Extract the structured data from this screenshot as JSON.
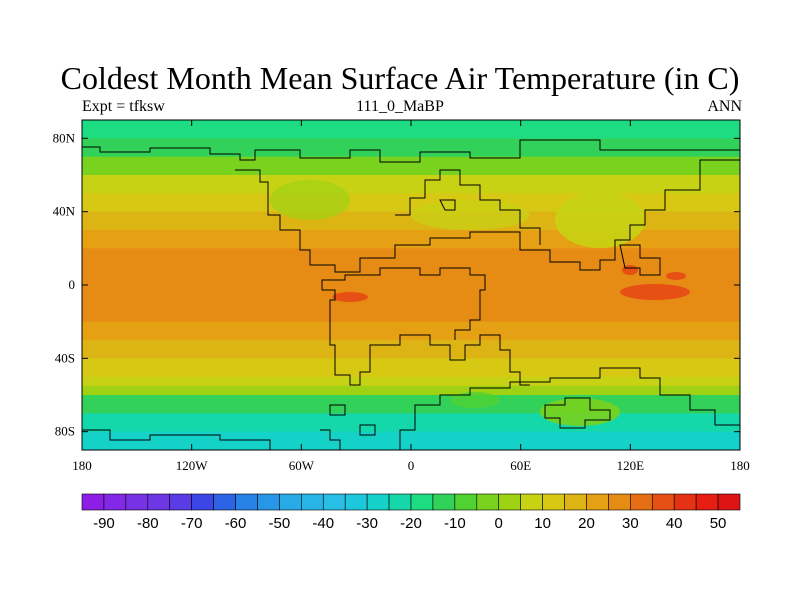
{
  "title": "Coldest Month Mean Surface Air Temperature (in C)",
  "subtitle_left": "Expt = tfksw",
  "subtitle_center": "111_0_MaBP",
  "subtitle_right": "ANN",
  "map": {
    "projection": "cylindrical-equidistant",
    "lon_range": [
      -180,
      180
    ],
    "lat_range": [
      -90,
      90
    ],
    "x_ticks": [
      {
        "value": -180,
        "label": "180"
      },
      {
        "value": -120,
        "label": "120W"
      },
      {
        "value": -60,
        "label": "60W"
      },
      {
        "value": 0,
        "label": "0"
      },
      {
        "value": 60,
        "label": "60E"
      },
      {
        "value": 120,
        "label": "120E"
      },
      {
        "value": 180,
        "label": "180"
      }
    ],
    "y_ticks": [
      {
        "value": 80,
        "label": "80N"
      },
      {
        "value": 40,
        "label": "40N"
      },
      {
        "value": 0,
        "label": "0"
      },
      {
        "value": -40,
        "label": "40S"
      },
      {
        "value": -80,
        "label": "80S"
      }
    ],
    "temperature_bands_by_latitude": [
      {
        "lat_min": 80,
        "lat_max": 90,
        "value": -20
      },
      {
        "lat_min": 70,
        "lat_max": 80,
        "value": -12
      },
      {
        "lat_min": 60,
        "lat_max": 70,
        "value": -3
      },
      {
        "lat_min": 50,
        "lat_max": 60,
        "value": 5
      },
      {
        "lat_min": 40,
        "lat_max": 50,
        "value": 12
      },
      {
        "lat_min": 30,
        "lat_max": 40,
        "value": 18
      },
      {
        "lat_min": 20,
        "lat_max": 30,
        "value": 23
      },
      {
        "lat_min": 10,
        "lat_max": 20,
        "value": 27
      },
      {
        "lat_min": -10,
        "lat_max": 10,
        "value": 28
      },
      {
        "lat_min": -20,
        "lat_max": -10,
        "value": 26
      },
      {
        "lat_min": -30,
        "lat_max": -20,
        "value": 22
      },
      {
        "lat_min": -40,
        "lat_max": -30,
        "value": 17
      },
      {
        "lat_min": -50,
        "lat_max": -40,
        "value": 12
      },
      {
        "lat_min": -55,
        "lat_max": -50,
        "value": 7
      },
      {
        "lat_min": -60,
        "lat_max": -55,
        "value": 2
      },
      {
        "lat_min": -70,
        "lat_max": -60,
        "value": -15
      },
      {
        "lat_min": -80,
        "lat_max": -70,
        "value": -25
      },
      {
        "lat_min": -90,
        "lat_max": -80,
        "value": -30
      }
    ]
  },
  "colorbar": {
    "levels": [
      -90,
      -85,
      -80,
      -75,
      -70,
      -65,
      -60,
      -55,
      -50,
      -45,
      -40,
      -35,
      -30,
      -25,
      -20,
      -15,
      -10,
      -5,
      0,
      5,
      10,
      15,
      20,
      25,
      30,
      35,
      40,
      45,
      50
    ],
    "colors": [
      "#8c1ee6",
      "#8228e6",
      "#7832e6",
      "#6e37e6",
      "#5a3ce6",
      "#3c46e6",
      "#2d64e6",
      "#2882e6",
      "#2896e6",
      "#28aae6",
      "#28b4e6",
      "#28bee6",
      "#1ec8dc",
      "#14d2c8",
      "#14d7aa",
      "#1edc82",
      "#32d25a",
      "#50d232",
      "#78d21e",
      "#a0d214",
      "#c8d214",
      "#d7c814",
      "#dcb414",
      "#e6a014",
      "#e68c14",
      "#e66e14",
      "#e65014",
      "#e63214",
      "#e61e14",
      "#dc1414"
    ],
    "labels": [
      "-90",
      "-80",
      "-70",
      "-60",
      "-50",
      "-40",
      "-30",
      "-20",
      "-10",
      "0",
      "10",
      "20",
      "30",
      "40",
      "50"
    ]
  }
}
